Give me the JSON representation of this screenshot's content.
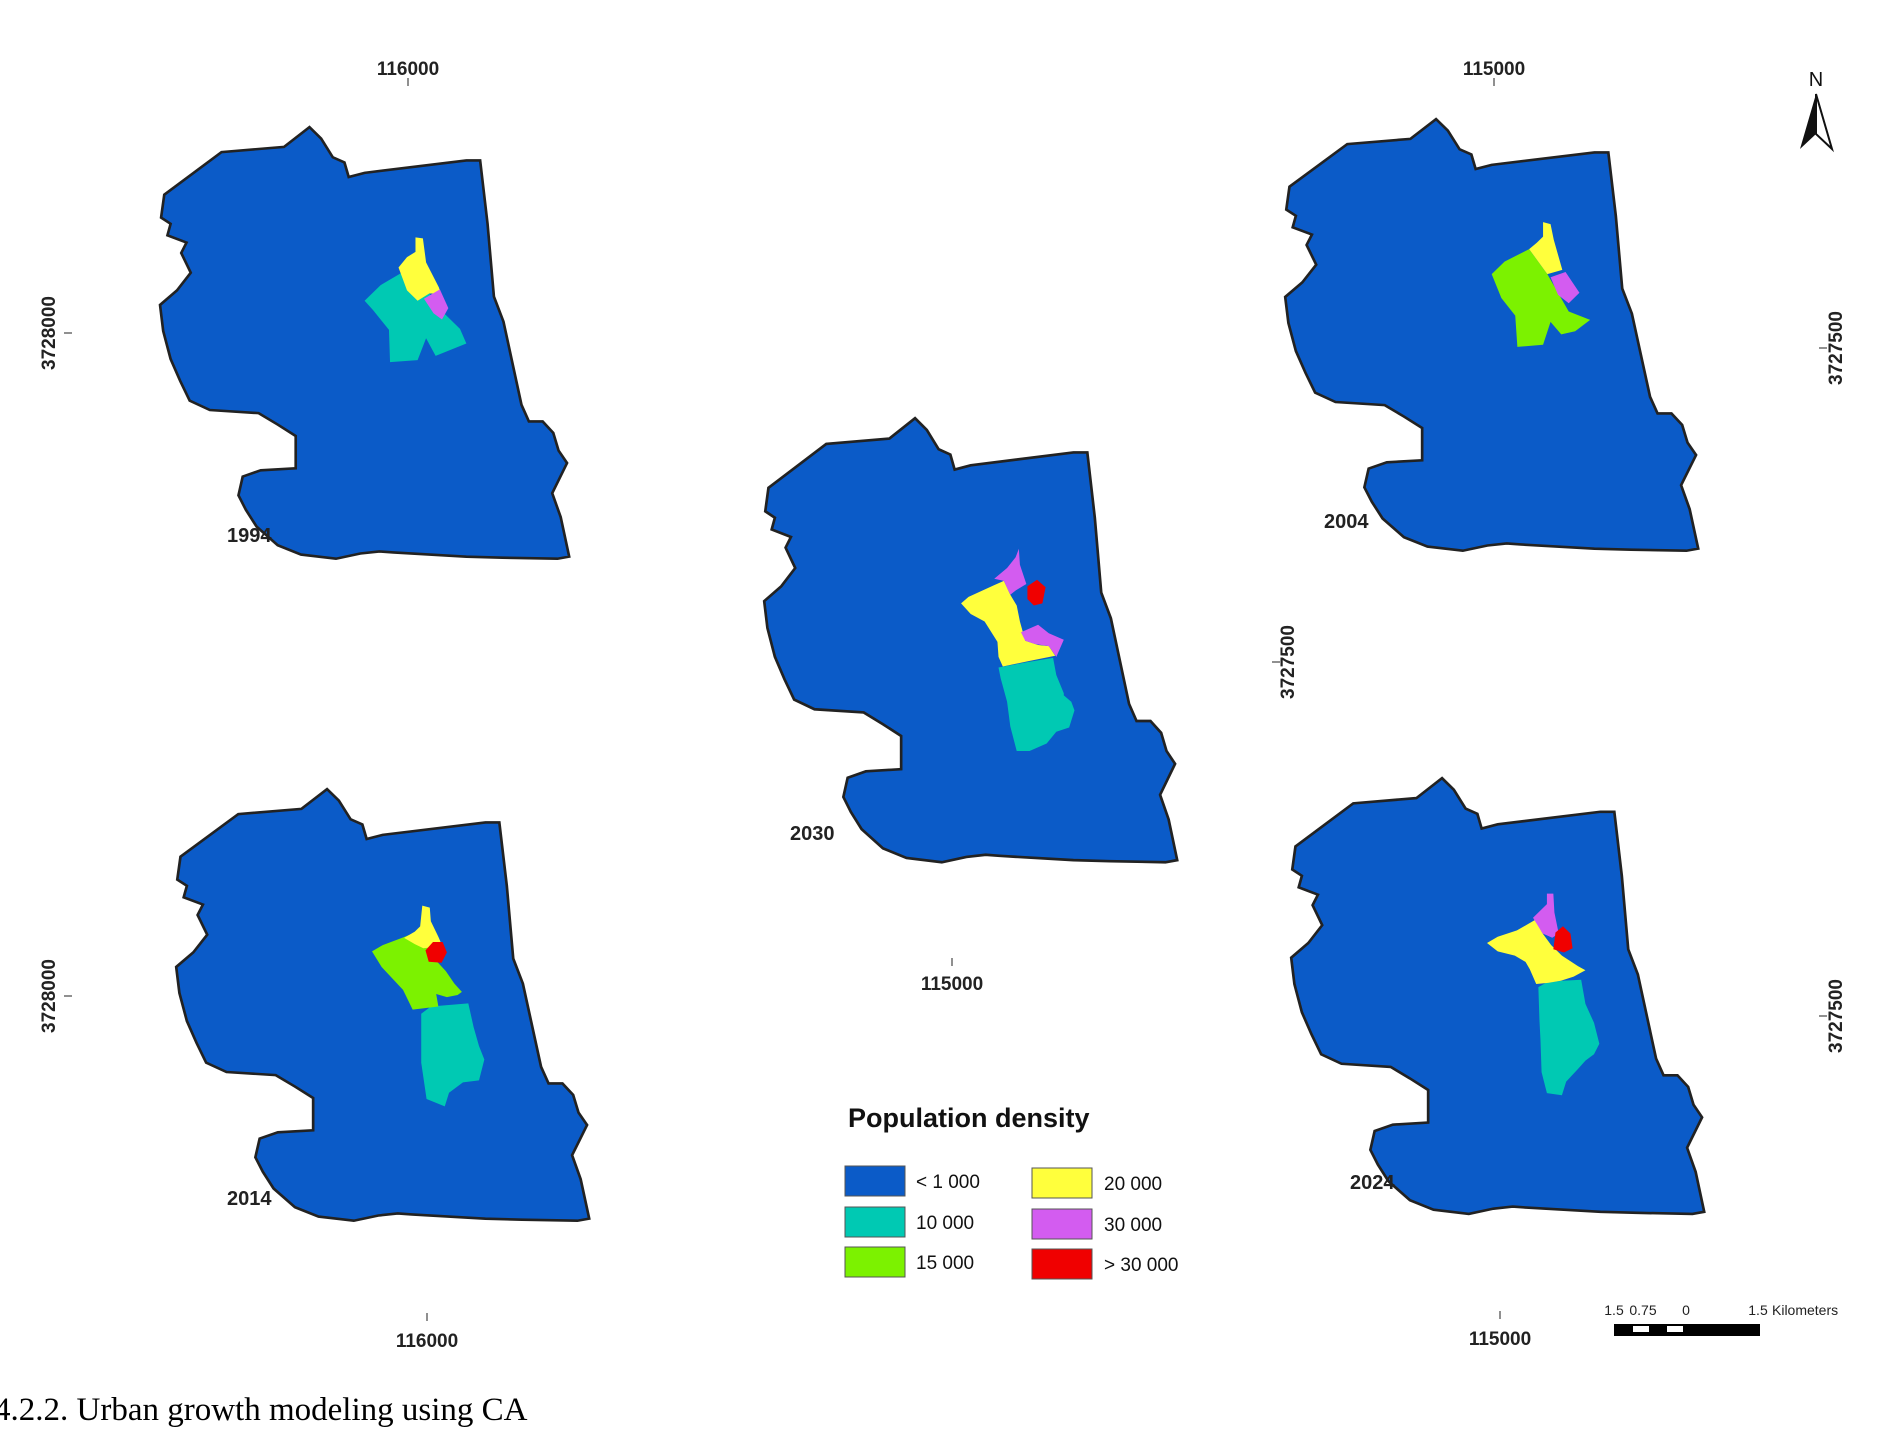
{
  "figure": {
    "caption_partial": "4.2.2. Urban growth modeling using CA"
  },
  "colors": {
    "lt1000": "#0B5BC8",
    "d10000": "#00C9B3",
    "d15000": "#7CF200",
    "d20000": "#FFFF3C",
    "d30000": "#D35CF0",
    "gt30000": "#F00000",
    "outline": "#222222"
  },
  "maps": [
    {
      "id": "map-1994",
      "year": "1994",
      "top_tick": "116000",
      "left_tick": "3728000",
      "classes_shown": [
        "< 1 000",
        "10 000",
        "20 000",
        "30 000"
      ]
    },
    {
      "id": "map-2004",
      "year": "2004",
      "top_tick": "115000",
      "right_tick": "3727500",
      "classes_shown": [
        "< 1 000",
        "15 000",
        "20 000",
        "30 000"
      ]
    },
    {
      "id": "map-2030",
      "year": "2030",
      "bottom_tick": "115000",
      "right_tick": "3727500",
      "classes_shown": [
        "< 1 000",
        "10 000",
        "20 000",
        "30 000",
        "> 30 000"
      ]
    },
    {
      "id": "map-2014",
      "year": "2014",
      "bottom_tick": "116000",
      "left_tick": "3728000",
      "classes_shown": [
        "< 1 000",
        "10 000",
        "15 000",
        "20 000",
        "> 30 000"
      ]
    },
    {
      "id": "map-2024",
      "year": "2024",
      "bottom_tick": "115000",
      "right_tick": "3727500",
      "classes_shown": [
        "< 1 000",
        "10 000",
        "20 000",
        "30 000",
        "> 30 000"
      ]
    }
  ],
  "legend": {
    "title": "Population density",
    "items": [
      {
        "label": "< 1 000",
        "color": "#0B5BC8"
      },
      {
        "label": "10 000",
        "color": "#00C9B3"
      },
      {
        "label": "15 000",
        "color": "#7CF200"
      },
      {
        "label": "20 000",
        "color": "#FFFF3C"
      },
      {
        "label": "30 000",
        "color": "#D35CF0"
      },
      {
        "label": "> 30 000",
        "color": "#F00000"
      }
    ]
  },
  "north_arrow": {
    "label": "N"
  },
  "scale_bar": {
    "ticks": [
      "1.5",
      "0.75",
      "0",
      "1.5"
    ],
    "unit": "Kilometers"
  }
}
